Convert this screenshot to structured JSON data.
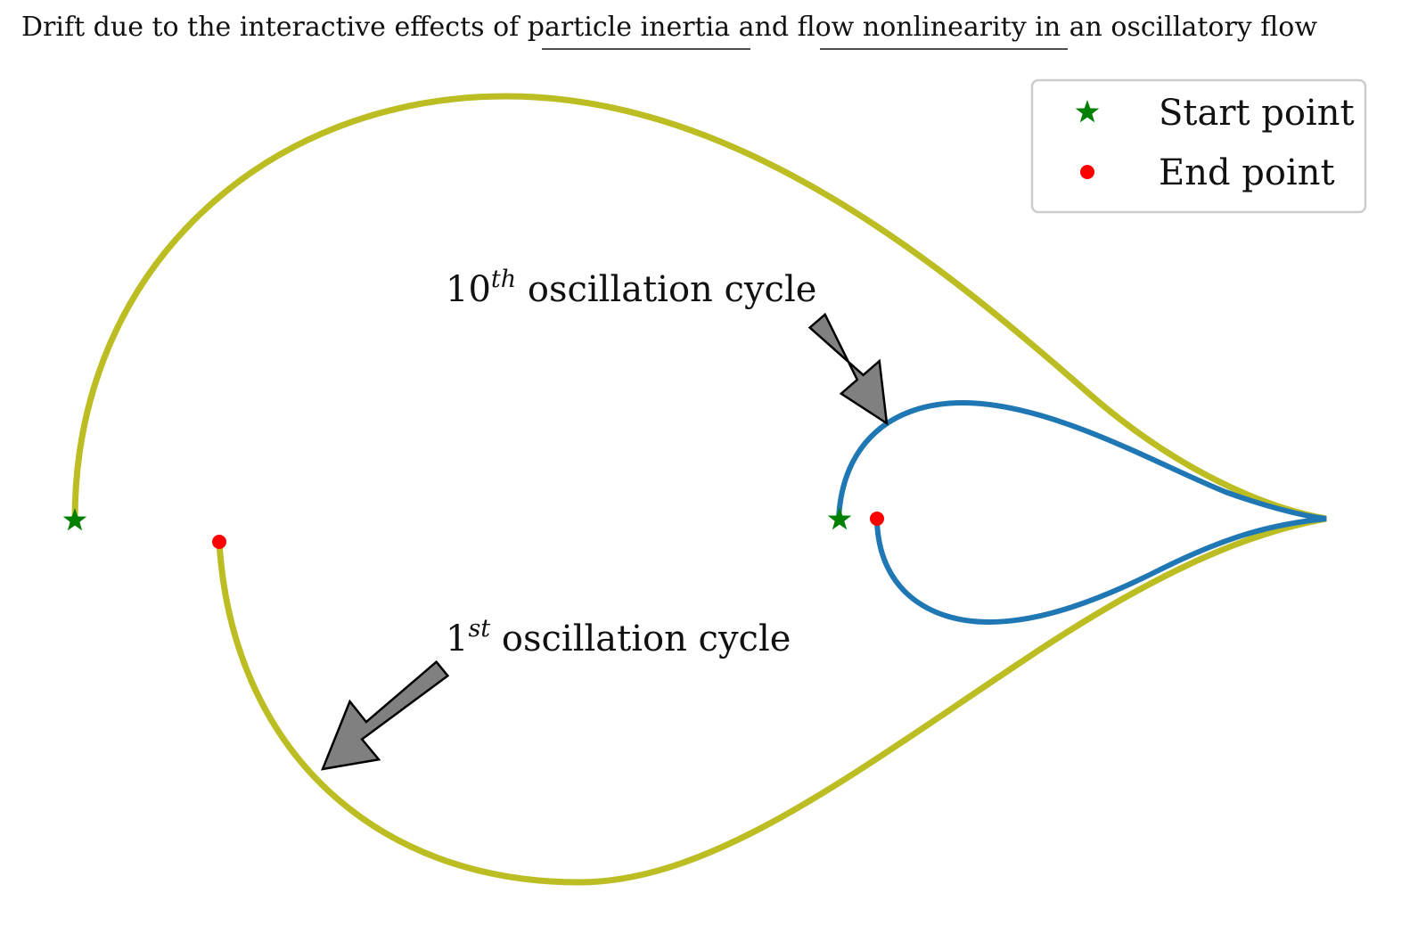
{
  "title": {
    "before": "Drift due to the interactive effects of ",
    "term1": "particle inertia",
    "middle": " and ",
    "term2": "flow nonlinearity",
    "after": " in an oscillatory flow"
  },
  "annotations": {
    "tenth": {
      "number": "10",
      "superscript": "th",
      "text": " oscillation cycle"
    },
    "first": {
      "number": "1",
      "superscript": "st",
      "text": " oscillation cycle"
    }
  },
  "legend": {
    "start_label": "Start point",
    "end_label": "End point"
  },
  "colors": {
    "first_cycle_path": "#bcbd22",
    "tenth_cycle_path": "#1f77b4",
    "start_marker": "#008000",
    "end_marker": "#ff0000",
    "arrow_fill": "#808080",
    "arrow_stroke": "#000000"
  },
  "icons": {
    "start_marker": "star-icon",
    "end_marker": "dot-icon",
    "annotation_pointer": "arrow-icon"
  }
}
